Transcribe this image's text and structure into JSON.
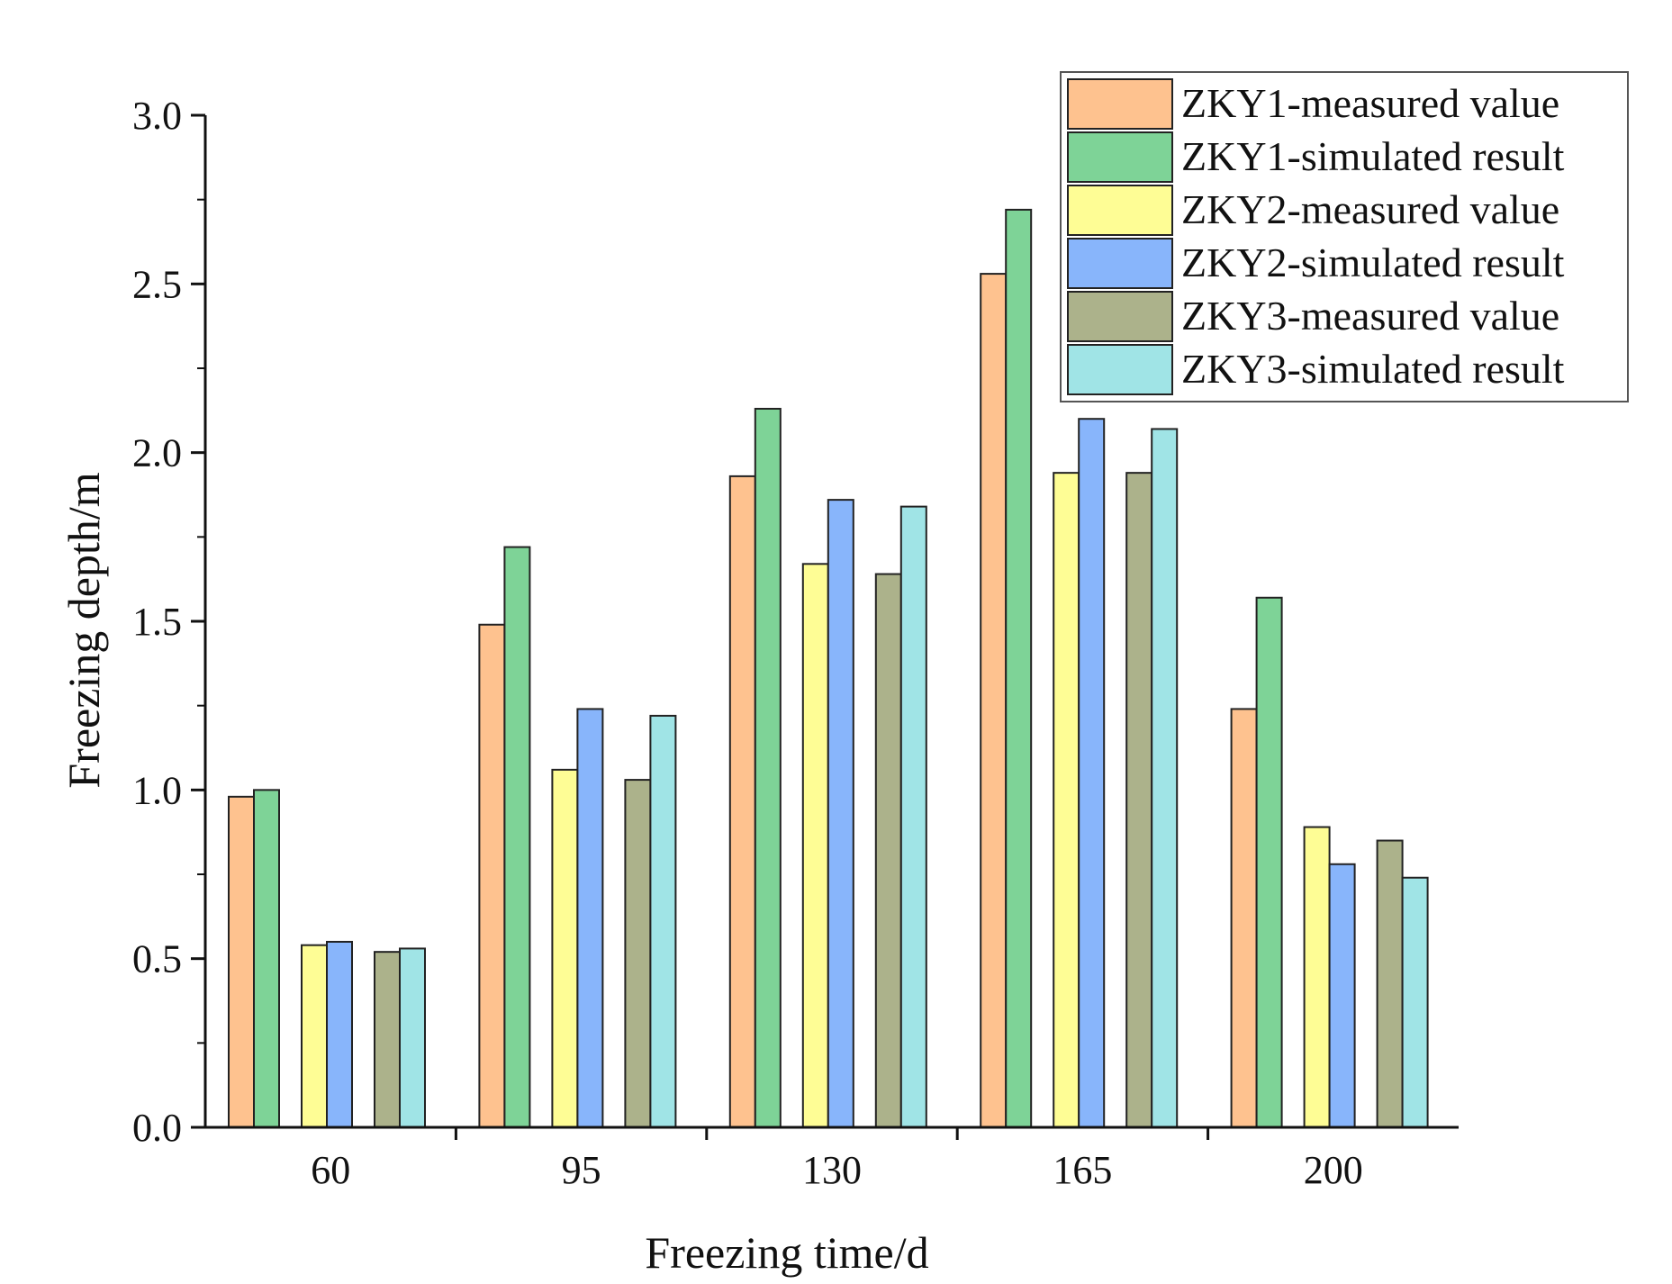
{
  "chart_data": {
    "type": "bar",
    "title": "",
    "xlabel": "Freezing time/d",
    "ylabel": "Freezing depth/m",
    "ylim": [
      0,
      3
    ],
    "yticks": [
      "0.0",
      "0.5",
      "1.0",
      "1.5",
      "2.0",
      "2.5",
      "3.0"
    ],
    "categories": [
      "60",
      "95",
      "130",
      "165",
      "200"
    ],
    "legend_position": "top-right",
    "series": [
      {
        "name": "ZKY1-measured value",
        "color": "#fec28f",
        "values": [
          0.98,
          1.49,
          1.93,
          2.53,
          1.24
        ]
      },
      {
        "name": "ZKY1-simulated result",
        "color": "#7ed397",
        "values": [
          1.0,
          1.72,
          2.13,
          2.72,
          1.57
        ]
      },
      {
        "name": "ZKY2-measured value",
        "color": "#fefd95",
        "values": [
          0.54,
          1.06,
          1.67,
          1.94,
          0.89
        ]
      },
      {
        "name": "ZKY2-simulated result",
        "color": "#88b5fb",
        "values": [
          0.55,
          1.24,
          1.86,
          2.1,
          0.78
        ]
      },
      {
        "name": "ZKY3-measured value",
        "color": "#acb28b",
        "values": [
          0.52,
          1.03,
          1.64,
          1.94,
          0.85
        ]
      },
      {
        "name": "ZKY3-simulated result",
        "color": "#a0e4e6",
        "values": [
          0.53,
          1.22,
          1.84,
          2.07,
          0.74
        ]
      }
    ]
  }
}
